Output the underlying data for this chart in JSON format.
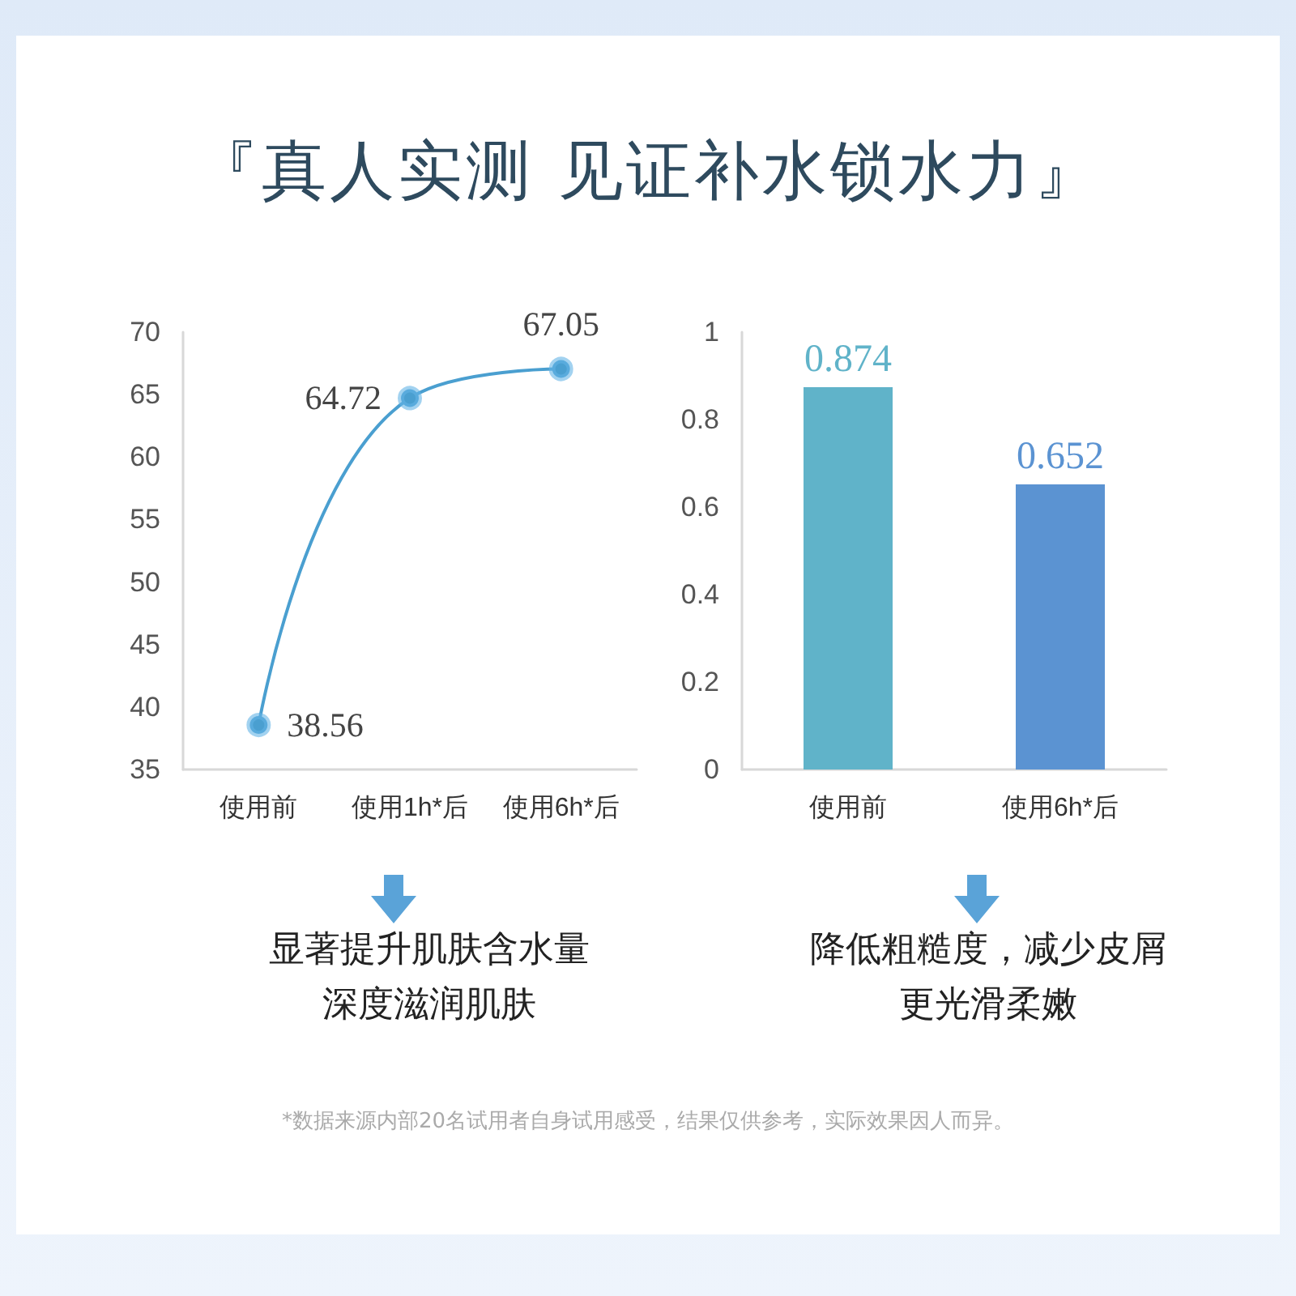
{
  "chart_data": [
    {
      "type": "line",
      "title": "『真人实测  见证补水锁水力』",
      "categories": [
        "使用前",
        "使用1h*后",
        "使用6h*后"
      ],
      "series": [
        {
          "color": "#4a9fd0",
          "values": [
            38.56,
            64.72,
            67.05
          ]
        }
      ],
      "ylim": [
        35,
        70
      ],
      "yticks": [
        35,
        40,
        45,
        50,
        55,
        60,
        65,
        70
      ],
      "marker": "circle",
      "line_style": "solid",
      "data_labels": true,
      "annotations": [
        "显著提升肌肤含水量",
        "深度滋润肌肤"
      ]
    },
    {
      "type": "bar",
      "categories": [
        "使用前",
        "使用6h*后"
      ],
      "values": [
        0.874,
        0.652
      ],
      "colors": [
        "#60b3c9",
        "#5b93d2"
      ],
      "ylim": [
        0,
        1
      ],
      "yticks": [
        0,
        0.2,
        0.4,
        0.6,
        0.8,
        1
      ],
      "data_labels": true,
      "annotations": [
        "降低粗糙度，减少皮屑",
        "更光滑柔嫩",
        "*数据来源内部20名试用者自身试用感受，结果仅供参考，实际效果因人而异。"
      ]
    }
  ]
}
